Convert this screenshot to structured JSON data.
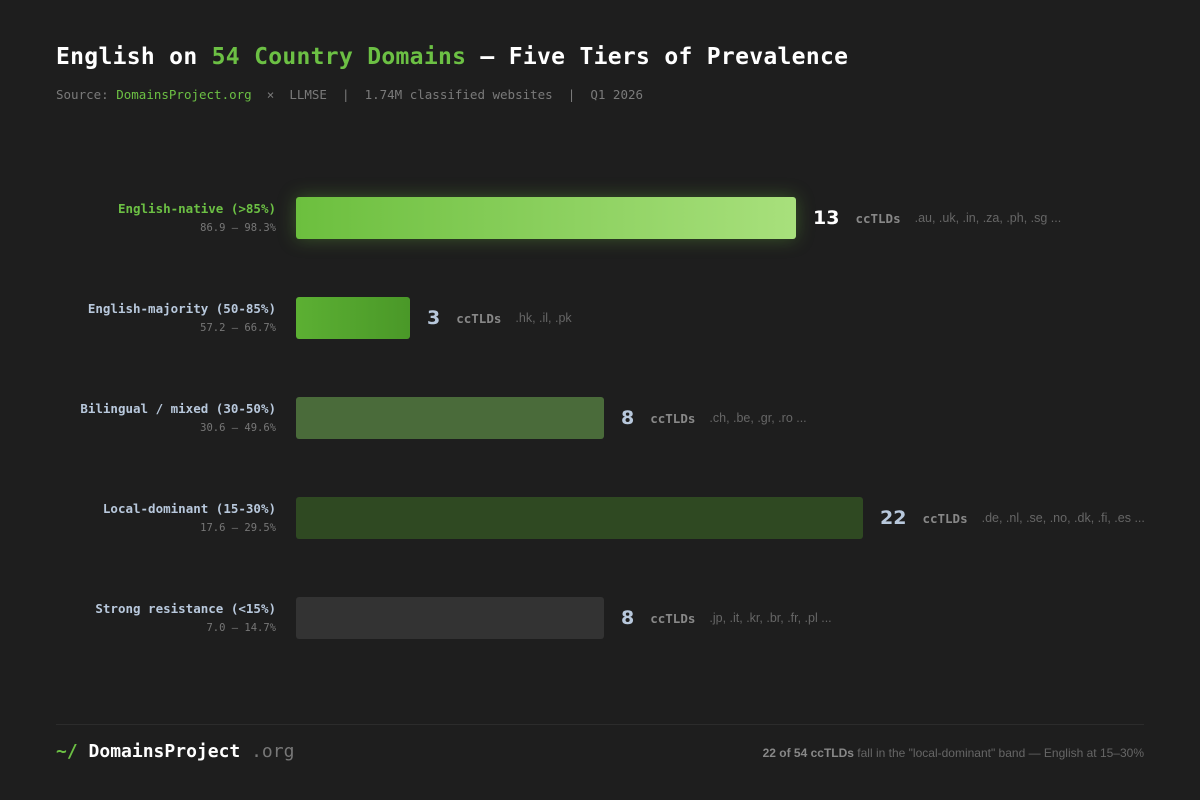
{
  "header": {
    "title_pre": "English on ",
    "title_hl": "54 Country Domains",
    "title_post": " — Five Tiers of Prevalence",
    "source_label": "Source: ",
    "source_link": "DomainsProject.org",
    "source_rest": "  ×  LLMSE  |  1.74M classified websites  |  Q1 2026"
  },
  "chart_data": {
    "type": "bar",
    "orientation": "horizontal",
    "title": "English on 54 Country Domains — Five Tiers of Prevalence",
    "categories": [
      "English-native (>85%)",
      "English-majority (50-85%)",
      "Bilingual / mixed (30-50%)",
      "Local-dominant (15-30%)",
      "Strong resistance (<15%)"
    ],
    "ranges": [
      "86.9 – 98.3%",
      "57.2 – 66.7%",
      "30.6 – 49.6%",
      "17.6 – 29.5%",
      "7.0 – 14.7%"
    ],
    "values": [
      13,
      3,
      8,
      22,
      8
    ],
    "unit": "ccTLDs",
    "examples": [
      ".au, .uk, .in, .za, .ph, .sg ...",
      ".hk, .il, .pk",
      ".ch, .be, .gr, .ro ...",
      ".de, .nl, .se, .no, .dk, .fi, .es ...",
      ".jp, .it, .kr, .br, .fr, .pl ..."
    ],
    "colors": [
      "#7cc94c",
      "#55a82e",
      "#4a6b3a",
      "#2f4922",
      "#333333"
    ]
  },
  "footer": {
    "logo_tilde": "~/",
    "logo_name": "DomainsProject",
    "logo_tld": " .org",
    "note_bold": "22 of 54 ccTLDs",
    "note_rest": " fall in the \"local-dominant\" band — English at 15–30%"
  }
}
